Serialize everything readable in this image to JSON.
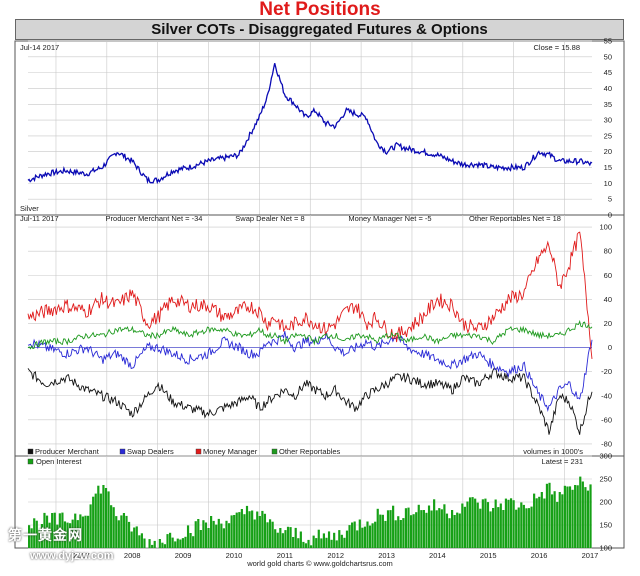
{
  "page": {
    "title": "Net Positions",
    "chart_header": "Silver COTs - Disaggregated Futures & Options",
    "footer_credit": "world gold charts © www.goldchartsrus.com",
    "watermark_text": "第一黄金网",
    "watermark_url": "www.dyjzw.com"
  },
  "colors": {
    "title": "#e01b1b",
    "silver": "#0a0ab4",
    "producer": "#111111",
    "swap": "#2a2ad6",
    "money_manager": "#e01b1b",
    "other": "#1f9a1f",
    "open_interest": "#16a016",
    "grid": "#c8c8c8"
  },
  "chart_data": [
    {
      "type": "line",
      "panel": "price",
      "title": "Silver",
      "date_label": "Jul-14 2017",
      "last_label": "Close = 15.88",
      "ylim": [
        0,
        55
      ],
      "y_ticks": [
        0,
        5,
        10,
        15,
        20,
        25,
        30,
        35,
        40,
        45,
        50,
        55
      ],
      "x": [
        2006.45,
        2006.8,
        2007.2,
        2007.6,
        2007.9,
        2008.2,
        2008.5,
        2008.8,
        2009.0,
        2009.3,
        2009.6,
        2010.0,
        2010.3,
        2010.6,
        2010.8,
        2011.0,
        2011.15,
        2011.3,
        2011.5,
        2011.7,
        2011.9,
        2012.1,
        2012.3,
        2012.5,
        2012.7,
        2012.9,
        2013.1,
        2013.3,
        2013.5,
        2013.7,
        2013.9,
        2014.2,
        2014.5,
        2014.8,
        2015.0,
        2015.3,
        2015.6,
        2015.9,
        2016.2,
        2016.5,
        2016.7,
        2016.9,
        2017.1,
        2017.3,
        2017.54
      ],
      "series": [
        {
          "name": "Silver",
          "values": [
            11,
            13,
            14,
            13,
            15,
            20,
            17,
            11,
            11,
            14,
            15,
            17,
            18,
            19,
            25,
            31,
            37,
            48,
            38,
            35,
            31,
            33,
            29,
            28,
            33,
            32,
            31,
            23,
            20,
            22,
            21,
            20,
            19,
            17,
            16,
            16,
            15,
            15,
            15,
            20,
            19,
            17,
            17,
            17,
            16
          ]
        }
      ]
    },
    {
      "type": "line",
      "panel": "cot",
      "date_label": "Jul-11 2017",
      "ylim": [
        -90,
        110
      ],
      "y_ticks": [
        -80,
        -60,
        -40,
        -20,
        0,
        20,
        40,
        60,
        80,
        100
      ],
      "volume_note": "volumes in 1000's",
      "net_labels": [
        {
          "label": "Producer Merchant Net = -34"
        },
        {
          "label": "Swap Dealer Net = 8"
        },
        {
          "label": "Money Manager Net = -5"
        },
        {
          "label": "Other Reportables Net = 18"
        }
      ],
      "x": [
        2006.45,
        2006.8,
        2007.2,
        2007.6,
        2007.9,
        2008.2,
        2008.5,
        2008.8,
        2009.0,
        2009.3,
        2009.6,
        2010.0,
        2010.3,
        2010.6,
        2010.8,
        2011.0,
        2011.15,
        2011.3,
        2011.5,
        2011.7,
        2011.9,
        2012.1,
        2012.3,
        2012.5,
        2012.7,
        2012.9,
        2013.1,
        2013.3,
        2013.5,
        2013.7,
        2013.9,
        2014.2,
        2014.5,
        2014.8,
        2015.0,
        2015.3,
        2015.6,
        2015.9,
        2016.2,
        2016.5,
        2016.7,
        2016.9,
        2017.1,
        2017.3,
        2017.54
      ],
      "series": [
        {
          "name": "Producer Merchant",
          "values": [
            -20,
            -30,
            -25,
            -35,
            -40,
            -45,
            -55,
            -40,
            -30,
            -45,
            -50,
            -55,
            -50,
            -45,
            -40,
            -50,
            -45,
            -40,
            -35,
            -40,
            -30,
            -35,
            -40,
            -35,
            -45,
            -50,
            -40,
            -35,
            -30,
            -25,
            -25,
            -30,
            -30,
            -35,
            -25,
            -30,
            -20,
            -25,
            -25,
            -50,
            -70,
            -40,
            -45,
            -70,
            -34
          ]
        },
        {
          "name": "Swap Dealers",
          "values": [
            5,
            0,
            -5,
            0,
            -10,
            -5,
            -15,
            0,
            0,
            -5,
            -10,
            -5,
            5,
            0,
            -5,
            -5,
            5,
            5,
            10,
            0,
            5,
            5,
            10,
            0,
            -5,
            0,
            5,
            0,
            5,
            10,
            0,
            -5,
            -10,
            -15,
            -10,
            -5,
            -15,
            -20,
            -15,
            -40,
            -50,
            -35,
            -30,
            -45,
            8
          ]
        },
        {
          "name": "Money Manager",
          "values": [
            25,
            30,
            35,
            30,
            40,
            35,
            45,
            20,
            25,
            40,
            35,
            35,
            25,
            30,
            35,
            30,
            20,
            25,
            15,
            20,
            25,
            20,
            15,
            20,
            30,
            35,
            20,
            25,
            15,
            10,
            15,
            25,
            40,
            35,
            20,
            15,
            25,
            40,
            45,
            75,
            85,
            50,
            70,
            95,
            -5
          ]
        },
        {
          "name": "Other Reportables",
          "values": [
            0,
            5,
            5,
            10,
            10,
            15,
            15,
            10,
            10,
            15,
            10,
            15,
            15,
            10,
            10,
            15,
            10,
            10,
            5,
            10,
            10,
            5,
            10,
            10,
            5,
            10,
            10,
            5,
            10,
            10,
            5,
            10,
            5,
            10,
            10,
            10,
            5,
            15,
            15,
            10,
            10,
            10,
            15,
            20,
            18
          ]
        }
      ]
    },
    {
      "type": "bar",
      "panel": "open_interest",
      "title": "Open Interest",
      "last_label": "Latest = 231",
      "ylim": [
        100,
        300
      ],
      "y_ticks": [
        100,
        150,
        200,
        250,
        300
      ],
      "x_ticks": [
        "2007",
        "2008",
        "2009",
        "2010",
        "2011",
        "2012",
        "2013",
        "2014",
        "2015",
        "2016",
        "2017"
      ],
      "x_tick_values": [
        2007,
        2008,
        2009,
        2010,
        2011,
        2012,
        2013,
        2014,
        2015,
        2016,
        2017
      ],
      "x": [
        2006.45,
        2006.8,
        2007.2,
        2007.6,
        2007.9,
        2008.2,
        2008.5,
        2008.8,
        2009.0,
        2009.3,
        2009.6,
        2010.0,
        2010.3,
        2010.6,
        2010.8,
        2011.0,
        2011.15,
        2011.3,
        2011.5,
        2011.7,
        2011.9,
        2012.1,
        2012.3,
        2012.5,
        2012.7,
        2012.9,
        2013.1,
        2013.3,
        2013.5,
        2013.7,
        2013.9,
        2014.2,
        2014.5,
        2014.8,
        2015.0,
        2015.3,
        2015.6,
        2015.9,
        2016.2,
        2016.5,
        2016.7,
        2016.9,
        2017.1,
        2017.3,
        2017.54
      ],
      "series": [
        {
          "name": "Open Interest",
          "values": [
            150,
            160,
            160,
            185,
            240,
            170,
            145,
            110,
            115,
            130,
            140,
            155,
            160,
            165,
            185,
            175,
            155,
            145,
            135,
            130,
            125,
            120,
            125,
            125,
            140,
            150,
            160,
            170,
            175,
            175,
            180,
            185,
            190,
            180,
            195,
            200,
            190,
            200,
            190,
            210,
            230,
            210,
            230,
            240,
            231
          ]
        }
      ]
    }
  ]
}
